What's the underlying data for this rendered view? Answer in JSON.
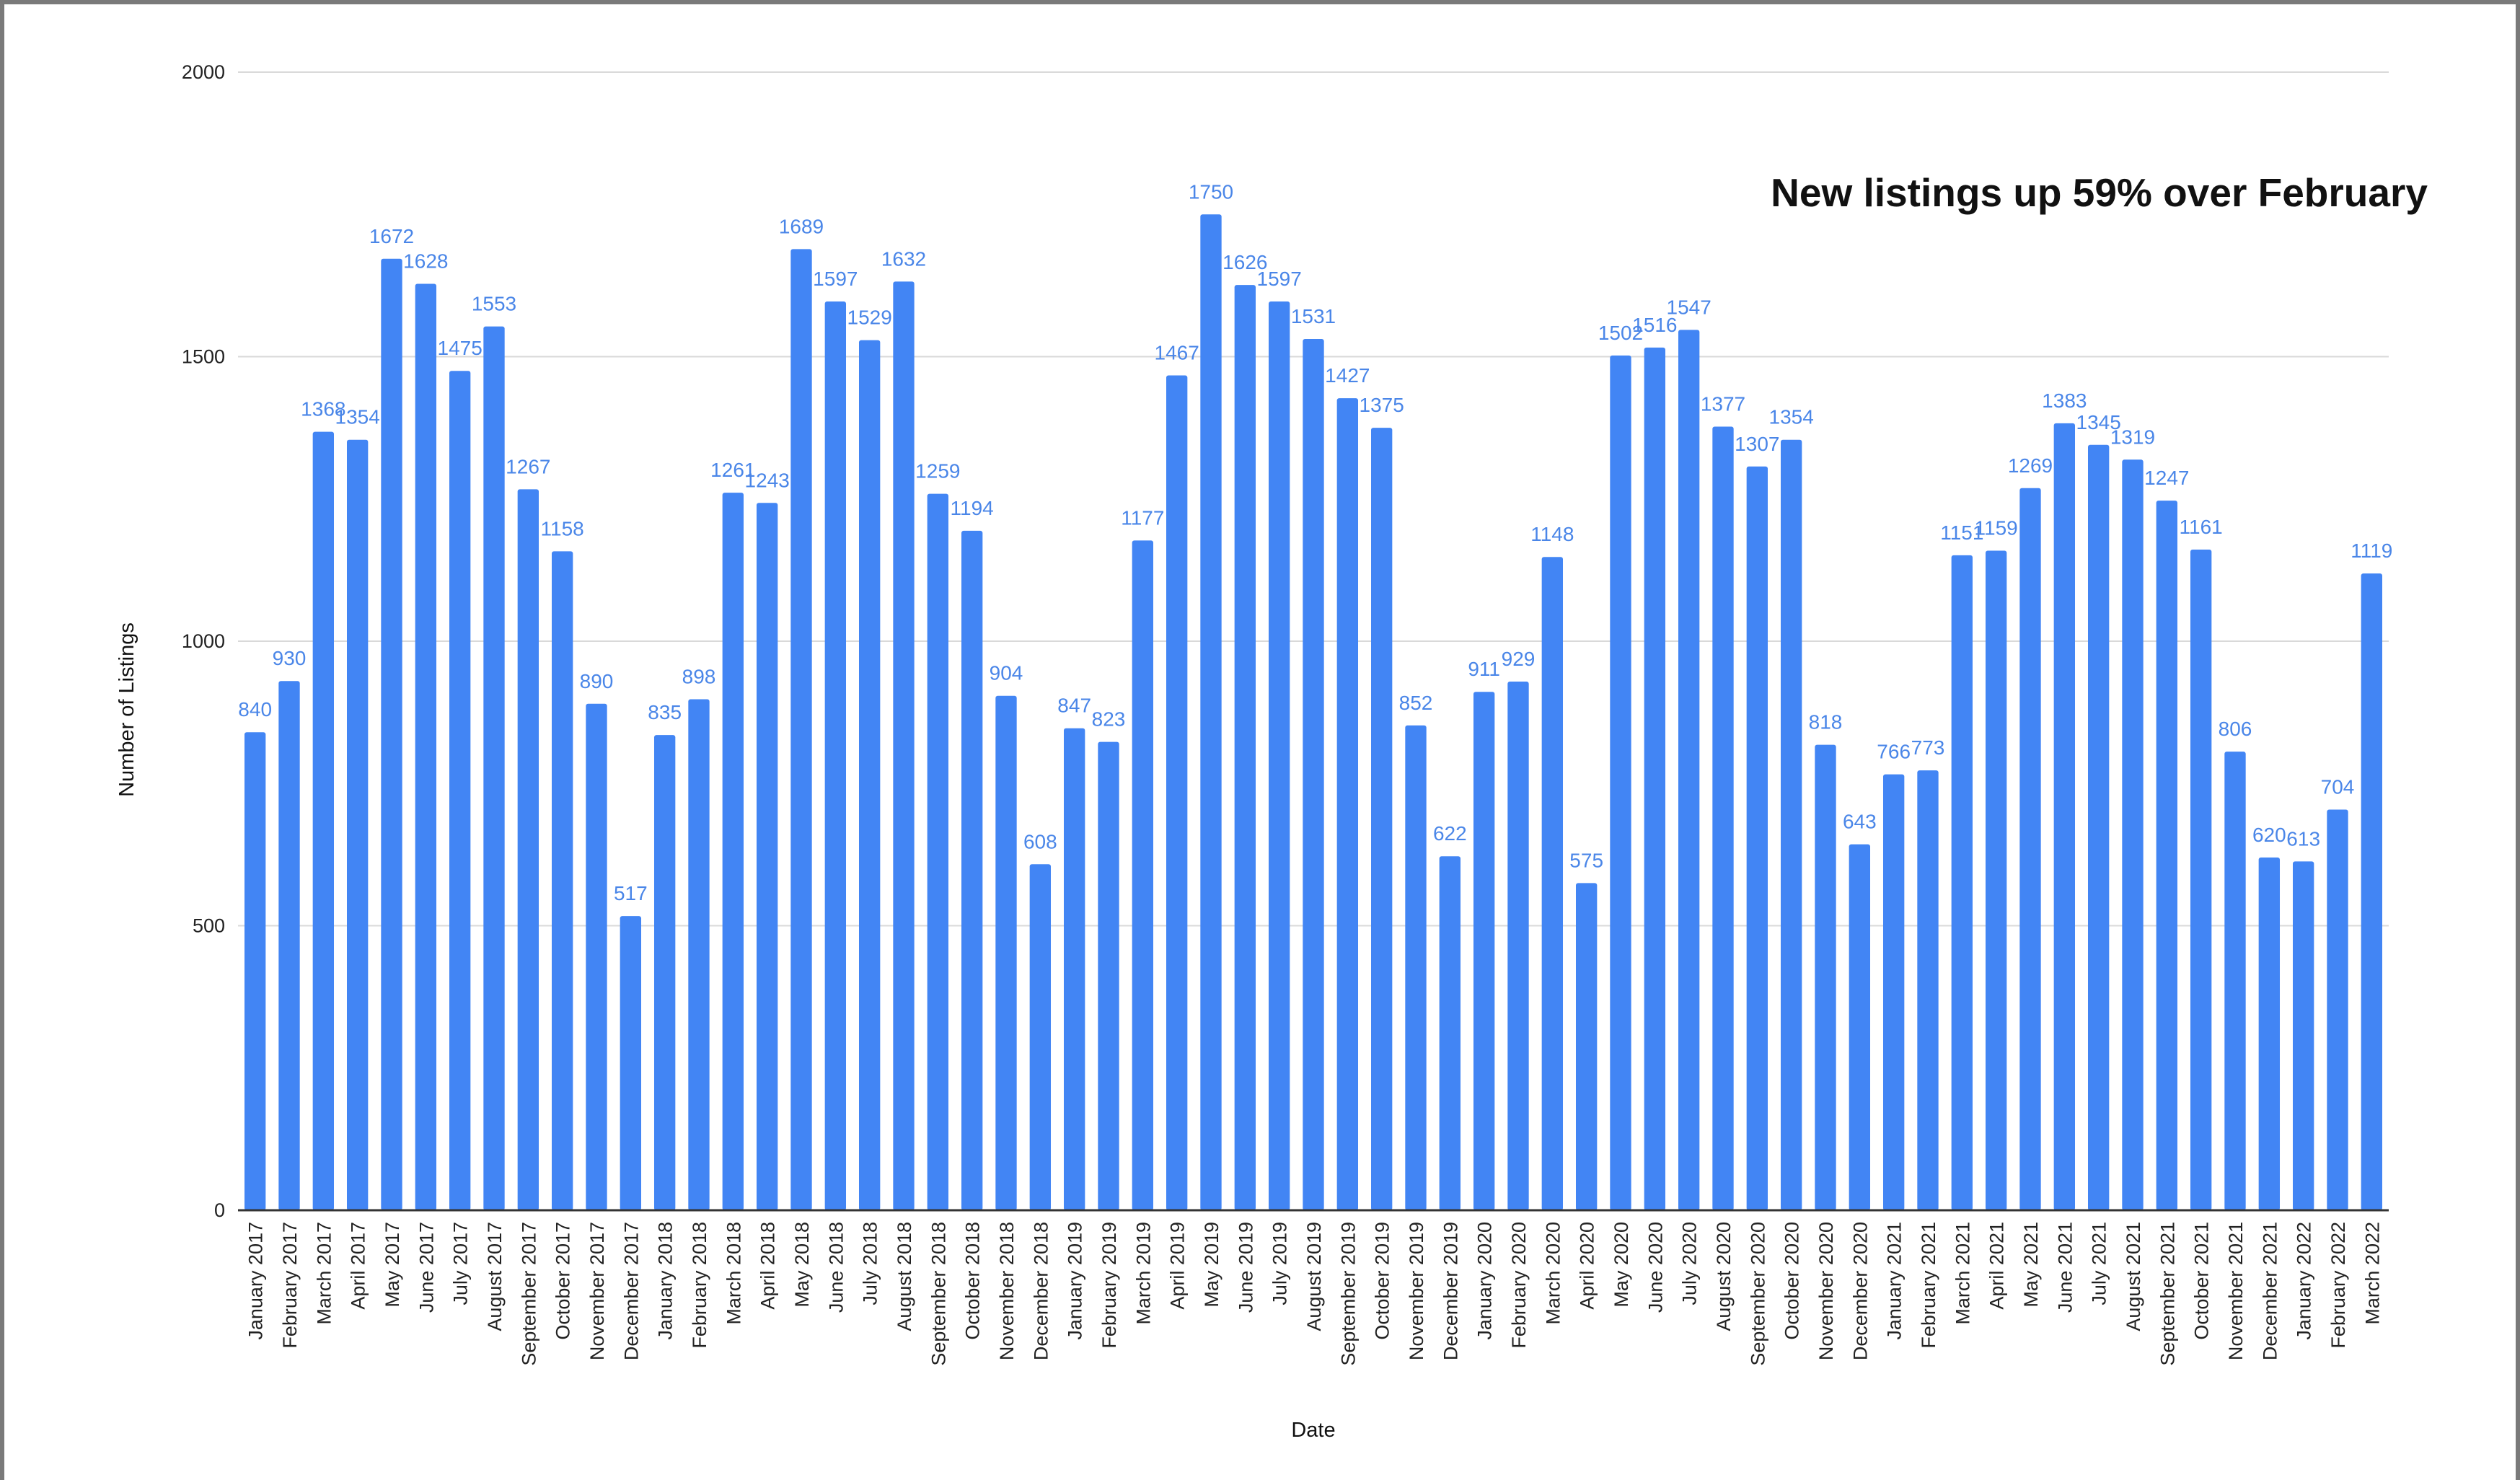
{
  "headline": "New listings up 59% over February",
  "chart_data": {
    "type": "bar",
    "title": "",
    "xlabel": "Date",
    "ylabel": "Number of Listings",
    "ylim": [
      0,
      2000
    ],
    "yticks": [
      "0",
      "500",
      "1000",
      "1500",
      "2000"
    ],
    "grid": true,
    "legend": "none",
    "colors": {
      "bar": "#4285f4",
      "data_label": "#4a86e8",
      "grid": "#d9d9d9",
      "axis": "#333333"
    },
    "categories": [
      "January 2017",
      "February 2017",
      "March 2017",
      "April 2017",
      "May 2017",
      "June 2017",
      "July 2017",
      "August 2017",
      "September 2017",
      "October 2017",
      "November 2017",
      "December 2017",
      "January 2018",
      "February 2018",
      "March 2018",
      "April 2018",
      "May 2018",
      "June 2018",
      "July 2018",
      "August 2018",
      "September 2018",
      "October 2018",
      "November 2018",
      "December 2018",
      "January 2019",
      "February 2019",
      "March 2019",
      "April 2019",
      "May 2019",
      "June 2019",
      "July 2019",
      "August 2019",
      "September 2019",
      "October 2019",
      "November 2019",
      "December 2019",
      "January 2020",
      "February 2020",
      "March 2020",
      "April 2020",
      "May 2020",
      "June 2020",
      "July 2020",
      "August 2020",
      "September 2020",
      "October 2020",
      "November 2020",
      "December 2020",
      "January 2021",
      "February 2021",
      "March 2021",
      "April 2021",
      "May 2021",
      "June 2021",
      "July 2021",
      "August 2021",
      "September 2021",
      "October 2021",
      "November 2021",
      "December 2021",
      "January 2022",
      "February 2022",
      "March 2022"
    ],
    "values": [
      840,
      930,
      1368,
      1354,
      1672,
      1628,
      1475,
      1553,
      1267,
      1158,
      890,
      517,
      835,
      898,
      1261,
      1243,
      1689,
      1597,
      1529,
      1632,
      1259,
      1194,
      904,
      608,
      847,
      823,
      1177,
      1467,
      1750,
      1626,
      1597,
      1531,
      1427,
      1375,
      852,
      622,
      911,
      929,
      1148,
      575,
      1502,
      1516,
      1547,
      1377,
      1307,
      1354,
      818,
      643,
      766,
      773,
      1151,
      1159,
      1269,
      1383,
      1345,
      1319,
      1247,
      1161,
      806,
      620,
      613,
      704,
      1119
    ]
  }
}
